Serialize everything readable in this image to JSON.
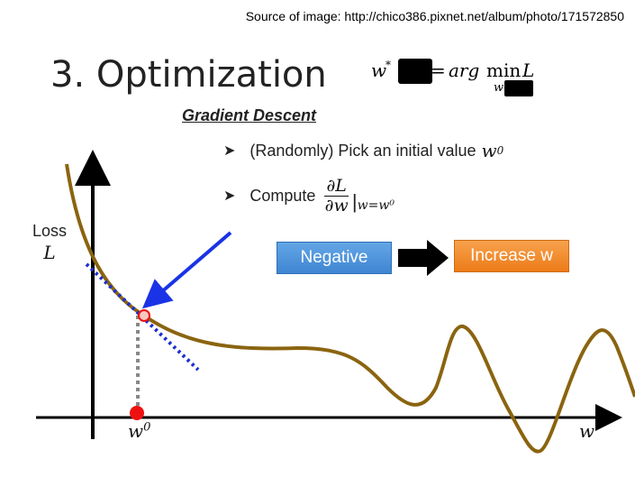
{
  "source": "Source of image: http://chico386.pixnet.net/album/photo/171572850",
  "title": "3. Optimization",
  "formula": {
    "lhs": "w",
    "lhs_sup": "*",
    "eq": "=",
    "arg": "arg",
    "min": "min",
    "min_sub": "w",
    "loss": "L"
  },
  "subtitle": "Gradient Descent",
  "bullets": {
    "b1_text": "(Randomly) Pick an initial value",
    "b1_var": "w",
    "b1_sup": "0",
    "b2_text": "Compute",
    "b2_num": "∂L",
    "b2_den": "∂w",
    "b2_eval": "|",
    "b2_sub": "w=w⁰"
  },
  "boxes": {
    "negative": "Negative",
    "increase": "Increase w"
  },
  "axis": {
    "y_label_word": "Loss",
    "y_label_var": "L",
    "x_point_var": "w",
    "x_point_sup": "0",
    "x_label": "w"
  },
  "colors": {
    "curve": "#8a6410",
    "tangent": "#1c2fd0",
    "gradient_arrow": "#1a33e6",
    "point": "#ee1111",
    "negative_box": "#4a90d9",
    "increase_box": "#f08a2c"
  }
}
